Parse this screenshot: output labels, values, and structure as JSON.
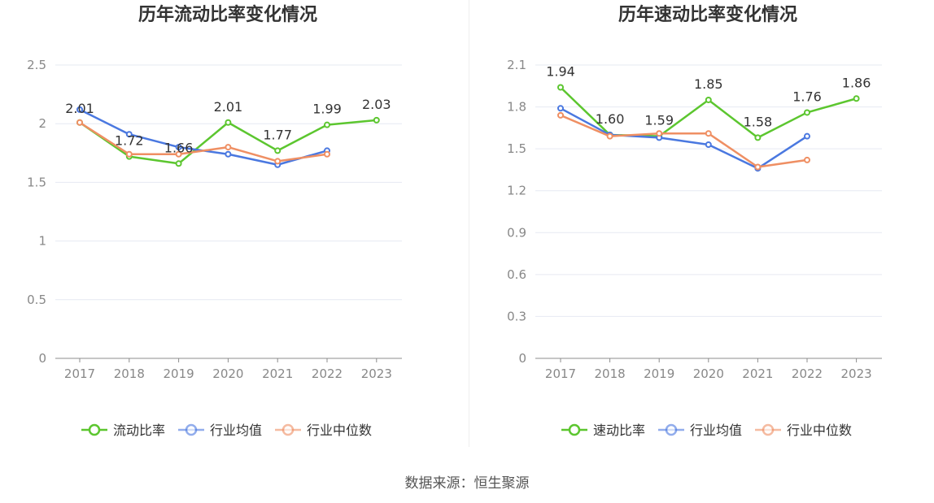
{
  "source": "数据来源：恒生聚源",
  "colors": {
    "main": "#5cc62f",
    "avg": "#4a78e0",
    "median": "#ef8f63"
  },
  "chart_data": [
    {
      "type": "line",
      "title": "历年流动比率变化情况",
      "categories": [
        "2017",
        "2018",
        "2019",
        "2020",
        "2021",
        "2022",
        "2023"
      ],
      "y_ticks": [
        "0",
        "0.5",
        "1",
        "1.5",
        "2",
        "2.5"
      ],
      "ylim": [
        0,
        2.5
      ],
      "grid": true,
      "legend_position": "bottom",
      "series": [
        {
          "name": "流动比率",
          "color": "#5cc62f",
          "labeled": true,
          "values": [
            2.01,
            1.72,
            1.66,
            2.01,
            1.77,
            1.99,
            2.03
          ],
          "labels": [
            "2.01",
            "1.72",
            "1.66",
            "2.01",
            "1.77",
            "1.99",
            "2.03"
          ]
        },
        {
          "name": "行业均值",
          "color": "#4a78e0",
          "values": [
            2.12,
            1.91,
            1.8,
            1.74,
            1.65,
            1.77,
            null
          ]
        },
        {
          "name": "行业中位数",
          "color": "#ef8f63",
          "values": [
            2.01,
            1.74,
            1.74,
            1.8,
            1.68,
            1.74,
            null
          ]
        }
      ]
    },
    {
      "type": "line",
      "title": "历年速动比率变化情况",
      "categories": [
        "2017",
        "2018",
        "2019",
        "2020",
        "2021",
        "2022",
        "2023"
      ],
      "y_ticks": [
        "0",
        "0.3",
        "0.6",
        "0.9",
        "1.2",
        "1.5",
        "1.8",
        "2.1"
      ],
      "ylim": [
        0,
        2.1
      ],
      "grid": true,
      "legend_position": "bottom",
      "series": [
        {
          "name": "速动比率",
          "color": "#5cc62f",
          "labeled": true,
          "values": [
            1.94,
            1.6,
            1.59,
            1.85,
            1.58,
            1.76,
            1.86
          ],
          "labels": [
            "1.94",
            "1.60",
            "1.59",
            "1.85",
            "1.58",
            "1.76",
            "1.86"
          ]
        },
        {
          "name": "行业均值",
          "color": "#4a78e0",
          "values": [
            1.79,
            1.6,
            1.58,
            1.53,
            1.36,
            1.59,
            null
          ]
        },
        {
          "name": "行业中位数",
          "color": "#ef8f63",
          "values": [
            1.74,
            1.59,
            1.61,
            1.61,
            1.37,
            1.42,
            null
          ]
        }
      ]
    }
  ]
}
